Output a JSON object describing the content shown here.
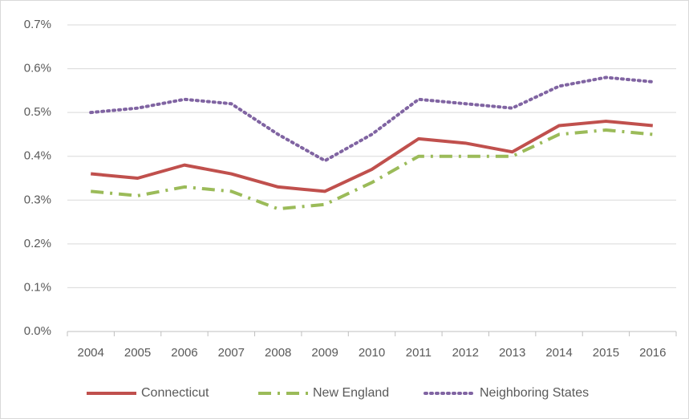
{
  "chart_data": {
    "type": "line",
    "categories": [
      "2004",
      "2005",
      "2006",
      "2007",
      "2008",
      "2009",
      "2010",
      "2011",
      "2012",
      "2013",
      "2014",
      "2015",
      "2016"
    ],
    "series": [
      {
        "name": "Connecticut",
        "color": "#c0504d",
        "dash": "solid",
        "values": [
          0.36,
          0.35,
          0.38,
          0.36,
          0.33,
          0.32,
          0.37,
          0.44,
          0.43,
          0.41,
          0.47,
          0.48,
          0.47
        ]
      },
      {
        "name": "New England",
        "color": "#9bbb59",
        "dash": "dashdot",
        "values": [
          0.32,
          0.31,
          0.33,
          0.32,
          0.28,
          0.29,
          0.34,
          0.4,
          0.4,
          0.4,
          0.45,
          0.46,
          0.45
        ]
      },
      {
        "name": "Neighboring States",
        "color": "#8064a2",
        "dash": "dotted",
        "values": [
          0.5,
          0.51,
          0.53,
          0.52,
          0.45,
          0.39,
          0.45,
          0.53,
          0.52,
          0.51,
          0.56,
          0.58,
          0.57
        ]
      }
    ],
    "ylim": [
      0,
      0.7
    ],
    "yticks": [
      {
        "value": 0,
        "label": "0.0%"
      },
      {
        "value": 0.1,
        "label": "0.1%"
      },
      {
        "value": 0.2,
        "label": "0.2%"
      },
      {
        "value": 0.3,
        "label": "0.3%"
      },
      {
        "value": 0.4,
        "label": "0.4%"
      },
      {
        "value": 0.5,
        "label": "0.5%"
      },
      {
        "value": 0.6,
        "label": "0.6%"
      },
      {
        "value": 0.7,
        "label": "0.7%"
      }
    ],
    "grid": true,
    "legend": "bottom"
  }
}
